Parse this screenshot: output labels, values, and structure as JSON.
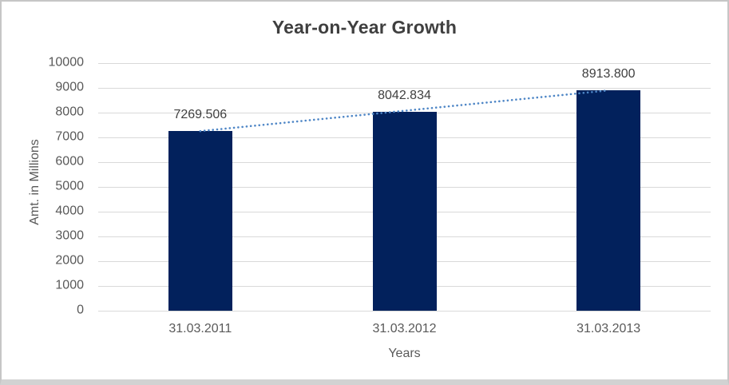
{
  "chart_data": {
    "type": "bar",
    "title": "Year-on-Year Growth",
    "categories": [
      "31.03.2011",
      "31.03.2012",
      "31.03.2013"
    ],
    "values": [
      7269.506,
      8042.834,
      8913.8
    ],
    "data_labels": [
      "7269.506",
      "8042.834",
      "8913.800"
    ],
    "xlabel": "Years",
    "ylabel": "Amt. in Millions",
    "ylim": [
      0,
      10000
    ],
    "yticks": [
      0,
      1000,
      2000,
      3000,
      4000,
      5000,
      6000,
      7000,
      8000,
      9000,
      10000
    ],
    "grid": "horizontal-gridlines-on",
    "legend": "none",
    "trendline": {
      "type": "linear",
      "style": "dotted"
    },
    "colors": {
      "bar": "#02215C",
      "trendline": "#4E86C6",
      "gridline": "#D9D9D9",
      "title_text": "#3F3F3F",
      "axis_text": "#595959",
      "data_label_text": "#404040",
      "frame_border": "#C6C6C6",
      "frame_border_bottom": "#D2D2D2",
      "background": "#FFFFFF"
    }
  }
}
